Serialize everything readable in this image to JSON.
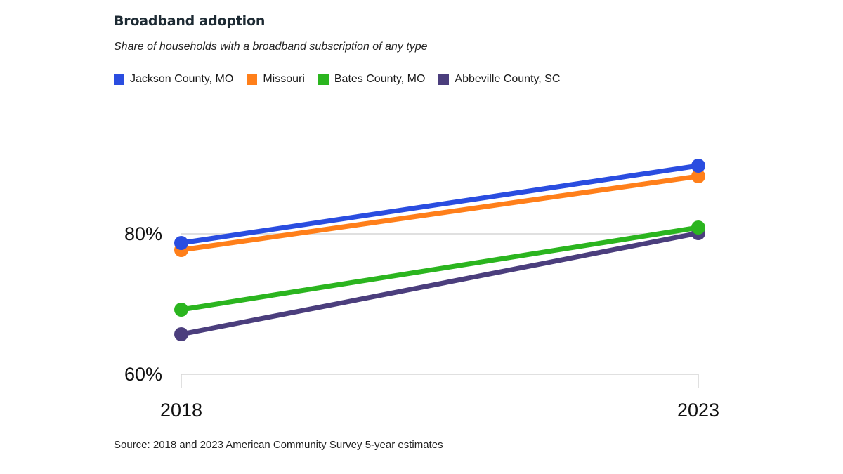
{
  "chart_data": {
    "type": "line",
    "title": "Broadband adoption",
    "subtitle": "Share of households with a broadband subscription of any type",
    "source": "Source: 2018 and 2023 American Community Survey 5-year estimates",
    "xlabel": "",
    "ylabel": "",
    "x": [
      "2018",
      "2023"
    ],
    "ylim": [
      60,
      90
    ],
    "yticks": [
      60,
      80
    ],
    "ytick_labels": [
      "60%",
      "80%"
    ],
    "grid": true,
    "legend_position": "top-left",
    "series": [
      {
        "name": "Jackson County, MO",
        "color": "#2a4de0",
        "values": [
          78.7,
          89.7
        ]
      },
      {
        "name": "Missouri",
        "color": "#ff7f1a",
        "values": [
          77.7,
          88.2
        ]
      },
      {
        "name": "Bates County, MO",
        "color": "#2bb51f",
        "values": [
          69.2,
          80.9
        ]
      },
      {
        "name": "Abbeville County, SC",
        "color": "#4b3e7d",
        "values": [
          65.7,
          80.1
        ]
      }
    ]
  }
}
